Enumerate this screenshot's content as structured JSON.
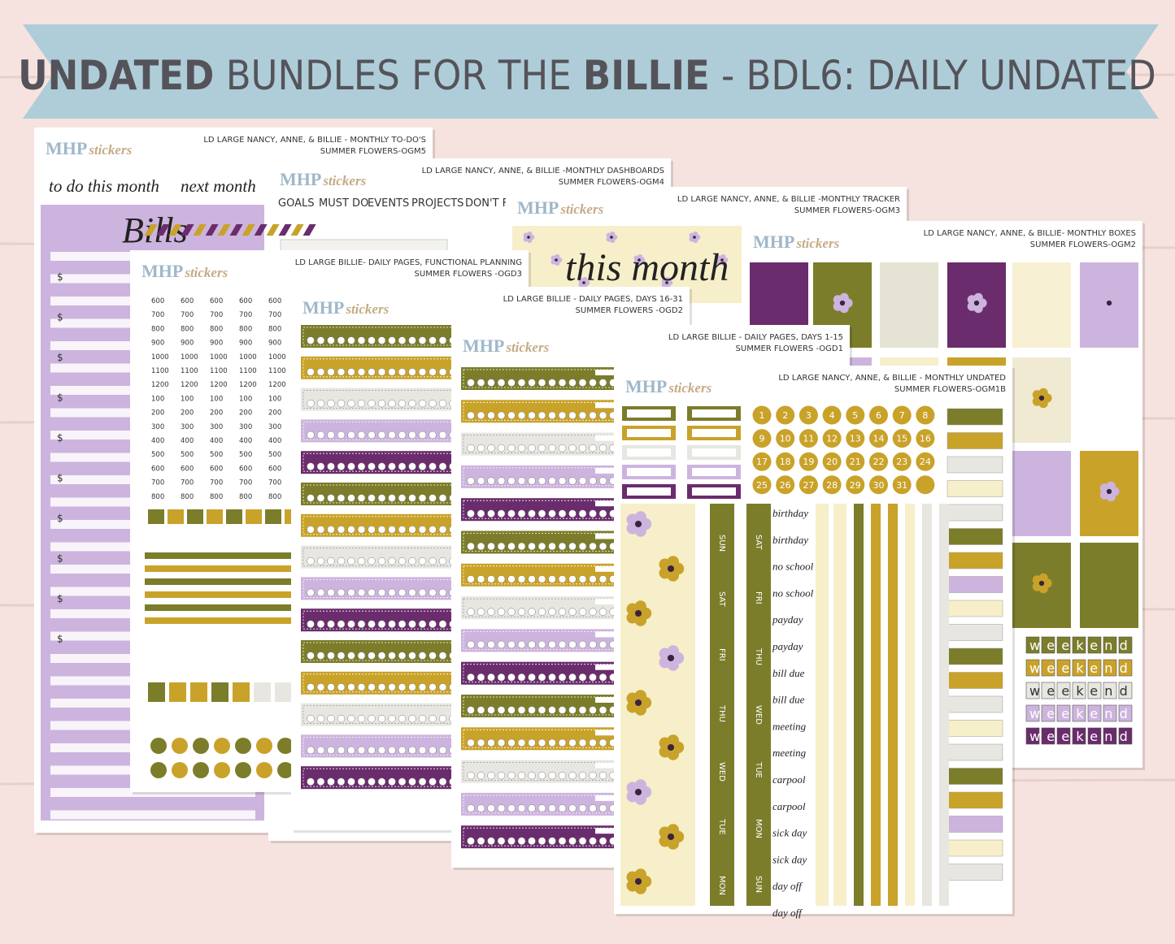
{
  "banner": {
    "bold_1": "UNDATED",
    "text_1": "BUNDLES FOR THE",
    "bold_2": "BILLIE",
    "text_2": "- BDL6: DAILY UNDATED"
  },
  "logo": {
    "mark": "MHP",
    "script": "stickers"
  },
  "sheets": [
    {
      "title": "LD LARGE NANCY, ANNE, & BILLIE - MONTHLY TO-DO'S",
      "subtitle": "SUMMER FLOWERS-OGM5"
    },
    {
      "title": "LD LARGE NANCY, ANNE, & BILLIE -MONTHLY DASHBOARDS",
      "subtitle": "SUMMER FLOWERS-OGM4"
    },
    {
      "title": "LD LARGE NANCY, ANNE, & BILLIE -MONTHLY TRACKER",
      "subtitle": "SUMMER FLOWERS-OGM3"
    },
    {
      "title": "LD LARGE NANCY, ANNE, & BILLIE- MONTHLY BOXES",
      "subtitle": "SUMMER FLOWERS-OGM2"
    },
    {
      "title": "LD LARGE BILLIE- DAILY PAGES, FUNCTIONAL PLANNING",
      "subtitle": "SUMMER FLOWERS -OGD3"
    },
    {
      "title": "LD LARGE BILLIE - DAILY PAGES, DAYS 16-31",
      "subtitle": "SUMMER FLOWERS -OGD2"
    },
    {
      "title": "LD LARGE BILLIE - DAILY PAGES, DAYS 1-15",
      "subtitle": "SUMMER FLOWERS -OGD1"
    },
    {
      "title": "LD LARGE NANCY, ANNE, & BILLIE - MONTHLY UNDATED",
      "subtitle": "SUMMER FLOWERS-OGM1B"
    }
  ],
  "todo": {
    "labels": [
      "to do this month",
      "next month"
    ],
    "heading": "Bills",
    "currency": "$"
  },
  "dashboard": {
    "headings": [
      "GOALS",
      "MUST DO",
      "EVENTS",
      "PROJECTS",
      "DON'T FORGET"
    ]
  },
  "tracker": {
    "heading": "this month"
  },
  "times": [
    "600",
    "700",
    "800",
    "900",
    "1000",
    "1100",
    "1200",
    "100",
    "200",
    "300",
    "400",
    "500",
    "600",
    "700",
    "800"
  ],
  "dates": [
    1,
    2,
    3,
    4,
    5,
    6,
    7,
    8,
    9,
    10,
    11,
    12,
    13,
    14,
    15,
    16,
    17,
    18,
    19,
    20,
    21,
    22,
    23,
    24,
    25,
    26,
    27,
    28,
    29,
    30,
    31
  ],
  "day_labels": [
    "SUN",
    "SAT",
    "FRI",
    "THU",
    "WED",
    "TUE",
    "MON"
  ],
  "words": [
    "birthday",
    "no school",
    "payday",
    "bill due",
    "meeting",
    "carpool",
    "sick day",
    "day off"
  ],
  "weekend": "weekend"
}
